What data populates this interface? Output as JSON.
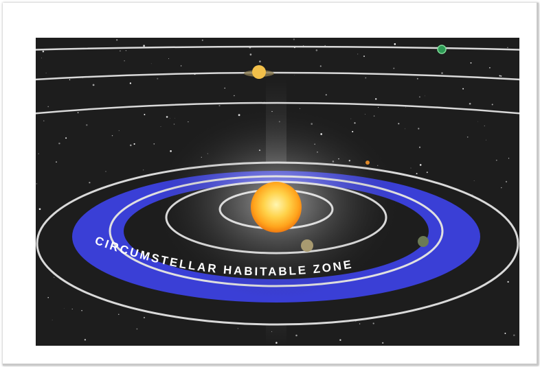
{
  "image": {
    "subject": "star-with-orbits-and-habitable-zone",
    "zone_label": "CIRCUMSTELLAR HABITABLE ZONE"
  },
  "colors": {
    "space": "#1d1d1d",
    "habitable_zone": "#3a3fd6",
    "orbit_line": "#d9d9d9",
    "star_core": "#ffd24a",
    "star_glow": "#ff9a1a"
  }
}
